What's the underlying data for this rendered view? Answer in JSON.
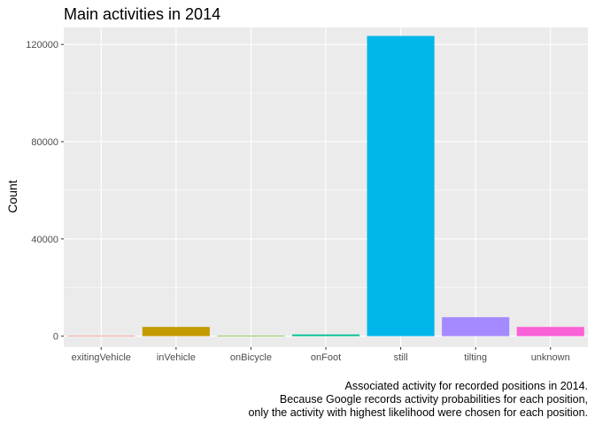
{
  "chart_data": {
    "type": "bar",
    "title": "Main activities in 2014",
    "xlabel": "",
    "ylabel": "Count",
    "categories": [
      "exitingVehicle",
      "inVehicle",
      "onBicycle",
      "onFoot",
      "still",
      "tilting",
      "unknown"
    ],
    "values": [
      15,
      3800,
      40,
      700,
      123500,
      7800,
      3800
    ],
    "colors": [
      "#F8766D",
      "#C49A00",
      "#53B400",
      "#00C094",
      "#00B6EB",
      "#A58AFF",
      "#FB61D7"
    ],
    "ylim": [
      -4500,
      127000
    ],
    "yticks": [
      0,
      40000,
      80000,
      120000
    ],
    "ytick_labels": [
      "0",
      "40000",
      "80000",
      "120000"
    ],
    "grid": true,
    "legend": "none",
    "panel_background": "#EBEBEB",
    "caption": [
      "Associated activity for recorded positions in 2014.",
      "Because Google records activity probabilities for each position,",
      "only the activity with highest likelihood were chosen for each position."
    ]
  }
}
